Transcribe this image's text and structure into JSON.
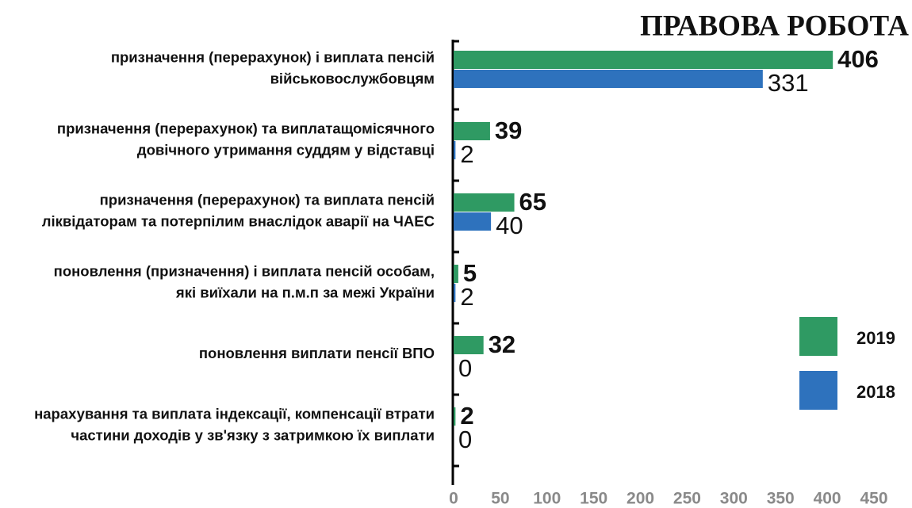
{
  "chart_data": {
    "type": "bar",
    "orientation": "horizontal",
    "title": "ПРАВОВА РОБОТА",
    "categories": [
      [
        "призначення (перерахунок) і виплата пенсій",
        "військовослужбовцям"
      ],
      [
        "призначення (перерахунок) та виплатащомісячного",
        "довічного утримання суддям у відставці"
      ],
      [
        "призначення (перерахунок) та виплата пенсій",
        "ліквідаторам  та потерпілим внаслідок аварії на ЧАЕС"
      ],
      [
        "поновлення (призначення) і виплата пенсій особам,",
        "які виїхали на п.м.п за межі України"
      ],
      [
        "поновлення виплати пенсії ВПО"
      ],
      [
        "нарахування та виплата індексації, компенсації втрати",
        "частини доходів у зв'язку з затримкою їх виплати"
      ]
    ],
    "series": [
      {
        "name": "2019",
        "color": "#2f9a63",
        "values": [
          406,
          39,
          65,
          5,
          32,
          2
        ]
      },
      {
        "name": "2018",
        "color": "#2e72bd",
        "values": [
          331,
          2,
          40,
          2,
          0,
          0
        ]
      }
    ],
    "xlim": [
      0,
      450
    ],
    "xticks": [
      0,
      50,
      100,
      150,
      200,
      250,
      300,
      350,
      400,
      450
    ],
    "legend": "right"
  }
}
